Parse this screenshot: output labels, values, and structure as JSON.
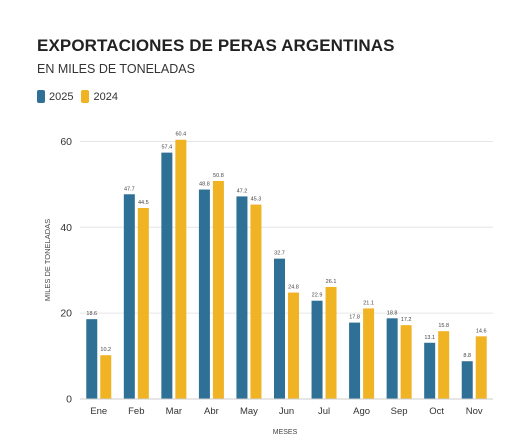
{
  "chart_data": {
    "type": "bar",
    "title": "EXPORTACIONES DE PERAS ARGENTINAS",
    "subtitle": "EN MILES DE TONELADAS",
    "xlabel": "MESES",
    "ylabel": "MILES DE TONELADAS",
    "ylim": [
      0,
      65
    ],
    "yticks": [
      "0",
      "20",
      "40",
      "60"
    ],
    "grid": true,
    "legend_position": "top-left",
    "categories": [
      "Ene",
      "Feb",
      "Mar",
      "Abr",
      "May",
      "Jun",
      "Jul",
      "Ago",
      "Sep",
      "Oct",
      "Nov"
    ],
    "series": [
      {
        "name": "2025",
        "color": "#2e7096",
        "values": [
          18.6,
          47.7,
          57.4,
          48.8,
          47.2,
          32.7,
          22.9,
          17.8,
          18.8,
          13.1,
          8.8
        ],
        "labels": [
          "18.6",
          "47.7",
          "57.4",
          "48.8",
          "47.2",
          "32.7",
          "22.9",
          "17.8",
          "18.8",
          "13.1",
          "8.8"
        ]
      },
      {
        "name": "2024",
        "color": "#f0b323",
        "values": [
          10.2,
          44.5,
          60.4,
          50.8,
          45.3,
          24.8,
          26.1,
          21.1,
          17.2,
          15.8,
          14.6
        ],
        "labels": [
          "10.2",
          "44.5",
          "60.4",
          "50.8",
          "45.3",
          "24.8",
          "26.1",
          "21.1",
          "17.2",
          "15.8",
          "14.6"
        ]
      }
    ]
  }
}
